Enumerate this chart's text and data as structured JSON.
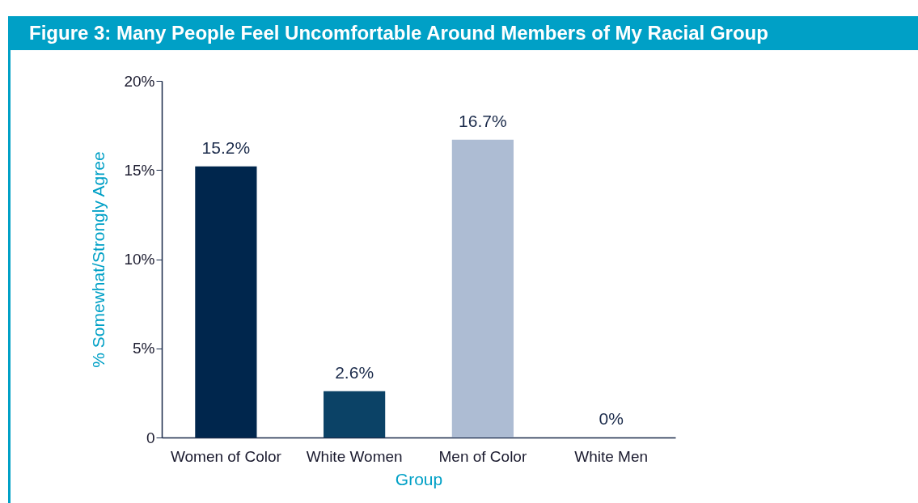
{
  "chart_data": {
    "type": "bar",
    "title": "Figure 3: Many People Feel Uncomfortable Around Members of My Racial Group",
    "xlabel": "Group",
    "ylabel": "% Somewhat/Strongly Agree",
    "categories": [
      "Women of Color",
      "White Women",
      "Men of Color",
      "White Men"
    ],
    "values": [
      15.2,
      2.6,
      16.7,
      0
    ],
    "colors": [
      "#00264d",
      "#0b4266",
      "#adbcd3",
      "#6f8fb0"
    ],
    "value_labels": [
      "15.2%",
      "2.6%",
      "16.7%",
      "0%"
    ],
    "ylim": [
      0,
      20
    ],
    "yticks": [
      0,
      {
        "value": 5,
        "label": "5%"
      },
      {
        "value": 10,
        "label": "10%"
      },
      {
        "value": 15,
        "label": "15%"
      },
      {
        "value": 20,
        "label": "20%"
      }
    ],
    "grid": false
  }
}
